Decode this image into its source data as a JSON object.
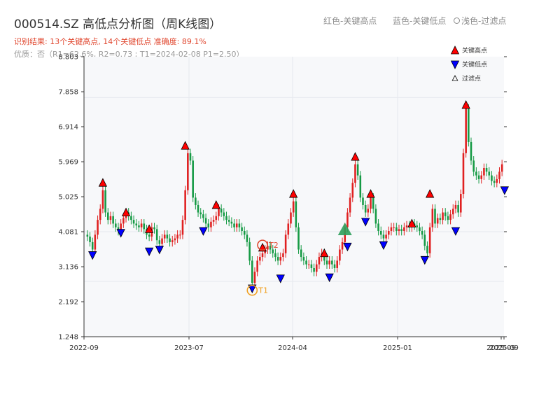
{
  "header": {
    "title": "000514.SZ 高低点分析图（周K线图）",
    "legend_red": "红色-关键高点",
    "legend_blue": "蓝色-关键低点",
    "legend_filtered": "浅色-过滤点",
    "result_line": "识别结果: 13个关键高点, 14个关键低点  准确度: 89.1%",
    "quality_line": "优质：否（R1=62.6%, R2=0.73 ; T1=2024-02-08 P1=2.50）"
  },
  "chart_data": {
    "type": "candlestick",
    "ylim": [
      1.248,
      8.803
    ],
    "y_ticks": [
      1.248,
      2.192,
      3.136,
      4.081,
      5.025,
      5.969,
      6.914,
      7.858,
      8.803
    ],
    "y_tick_labels": [
      "1.248",
      "2.192",
      "3.136",
      "4.081",
      "5.025",
      "5.969",
      "6.914",
      "7.858",
      "8.803"
    ],
    "x_tick_labels": [
      "2022-09",
      "2023-07",
      "2024-04",
      "2025-01",
      "2025-09",
      "2025-09"
    ],
    "legend": {
      "high": "关键高点",
      "low": "关键低点",
      "filtered": "过滤点",
      "high_color": "#ff0000",
      "low_color": "#0000ff",
      "filtered_color": "#ffffff"
    },
    "colors": {
      "up": "#e02020",
      "down": "#159a44"
    },
    "close_series": [
      3.95,
      3.8,
      3.6,
      4.0,
      4.4,
      4.7,
      5.2,
      4.6,
      4.4,
      4.5,
      4.3,
      4.2,
      4.1,
      4.3,
      4.45,
      4.6,
      4.5,
      4.4,
      4.3,
      4.25,
      4.2,
      4.3,
      4.15,
      4.0,
      3.95,
      4.2,
      4.15,
      3.85,
      3.75,
      3.9,
      4.0,
      3.9,
      3.8,
      3.85,
      3.9,
      4.0,
      4.0,
      4.4,
      5.2,
      6.2,
      6.0,
      5.0,
      4.8,
      4.6,
      4.55,
      4.45,
      4.3,
      4.2,
      4.35,
      4.4,
      4.5,
      4.7,
      4.6,
      4.5,
      4.4,
      4.35,
      4.3,
      4.2,
      4.3,
      4.2,
      4.1,
      4.0,
      3.8,
      3.3,
      2.7,
      3.0,
      3.3,
      3.4,
      3.5,
      3.6,
      3.7,
      3.6,
      3.5,
      3.4,
      3.3,
      3.4,
      3.5,
      4.0,
      4.3,
      4.6,
      4.9,
      4.2,
      3.6,
      3.4,
      3.3,
      3.2,
      3.2,
      3.1,
      3.0,
      3.2,
      3.4,
      3.5,
      3.3,
      3.2,
      3.3,
      3.2,
      3.1,
      3.3,
      3.6,
      3.8,
      4.2,
      4.6,
      5.0,
      5.4,
      5.9,
      5.6,
      5.0,
      4.8,
      4.6,
      4.7,
      5.0,
      4.7,
      4.3,
      4.1,
      4.0,
      3.9,
      4.0,
      4.1,
      4.2,
      4.2,
      4.1,
      4.15,
      4.1,
      4.2,
      4.25,
      4.2,
      4.3,
      4.25,
      4.2,
      4.1,
      4.0,
      3.7,
      3.5,
      4.2,
      4.7,
      4.3,
      4.45,
      4.4,
      4.6,
      4.5,
      4.4,
      4.55,
      4.7,
      4.8,
      4.6,
      5.1,
      6.2,
      7.4,
      6.5,
      6.0,
      5.7,
      5.6,
      5.5,
      5.6,
      5.8,
      5.7,
      5.6,
      5.45,
      5.4,
      5.5,
      5.7,
      5.9
    ],
    "key_highs": [
      {
        "i": 6,
        "v": 5.4
      },
      {
        "i": 15,
        "v": 4.6
      },
      {
        "i": 24,
        "v": 4.15
      },
      {
        "i": 38,
        "v": 6.4
      },
      {
        "i": 50,
        "v": 4.8
      },
      {
        "i": 68,
        "v": 3.65
      },
      {
        "i": 80,
        "v": 5.1
      },
      {
        "i": 92,
        "v": 3.5
      },
      {
        "i": 104,
        "v": 6.1
      },
      {
        "i": 110,
        "v": 5.1
      },
      {
        "i": 126,
        "v": 4.3
      },
      {
        "i": 133,
        "v": 5.1
      },
      {
        "i": 147,
        "v": 7.5
      }
    ],
    "key_lows": [
      {
        "i": 2,
        "v": 3.45
      },
      {
        "i": 13,
        "v": 4.05
      },
      {
        "i": 24,
        "v": 3.55
      },
      {
        "i": 28,
        "v": 3.6
      },
      {
        "i": 45,
        "v": 4.1
      },
      {
        "i": 64,
        "v": 2.55
      },
      {
        "i": 75,
        "v": 2.82
      },
      {
        "i": 94,
        "v": 2.85
      },
      {
        "i": 101,
        "v": 3.68
      },
      {
        "i": 108,
        "v": 4.35
      },
      {
        "i": 115,
        "v": 3.72
      },
      {
        "i": 131,
        "v": 3.32
      },
      {
        "i": 143,
        "v": 4.1
      },
      {
        "i": 162,
        "v": 5.2
      }
    ],
    "filtered_points": [
      {
        "i": 100,
        "v": 4.1,
        "kind": "high"
      }
    ],
    "annotations": [
      {
        "text": "T1",
        "i": 64,
        "v": 2.5
      },
      {
        "text": "T2",
        "i": 68,
        "v": 3.72
      }
    ],
    "grid": true
  }
}
